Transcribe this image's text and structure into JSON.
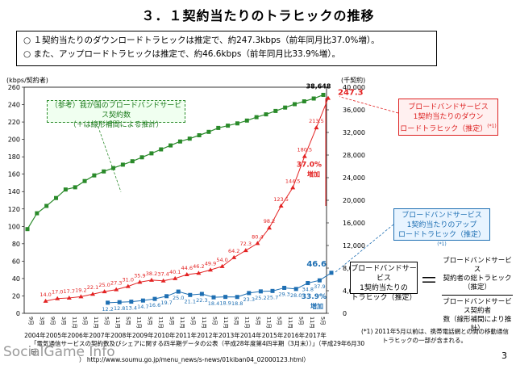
{
  "page": {
    "title": "３．１契約当たりのトラヒックの推移",
    "bullets": [
      "○ １契約当たりのダウンロードトラヒックは推定で、約247.3kbps（前年同月比37.0%増）。",
      "○ また、アップロードトラヒックは推定で、約46.6kbps（前年同月比33.9%増）。"
    ],
    "callout_reference": [
      "（参考）我が国のブロードバンドサービス契約数",
      "（＋は線形補間による推計）"
    ],
    "callout_download": [
      "ブロードバンドサービス",
      "1契約当たりのダウン",
      "ロードトラヒック（推定）"
    ],
    "callout_download_sup": "(*1)",
    "callout_upload": [
      "ブロードバンドサービス",
      "1契約当たりのアップ",
      "ロードトラヒック（推定）"
    ],
    "callout_upload_sup": "(*1)",
    "formula_left": [
      "ブロードバンドサービス",
      "1契約当たりの",
      "トラヒック（推定）"
    ],
    "formula_eq": "＝",
    "formula_num": [
      "ブロードバンドサービス",
      "契約者の総トラヒック（推定）"
    ],
    "formula_den": [
      "ブロードバンドサービス契約者",
      "数（線形補間により推計）"
    ],
    "note": [
      "(*1)  2011年5月以前は、携帯電話網との間の移動通信",
      "トラヒックの一部が含まれる。"
    ],
    "source": [
      "「電気通信サービスの契約数及びシェアに関する四半期データの公表（平成28年度第4四半期（3月末））」（平成29年6月30日",
      "） http://www.soumu.go.jp/menu_news/s-news/01kiban04_02000123.html）"
    ],
    "logo": "SocialGame Info",
    "page_number": "3"
  },
  "chart_data": {
    "type": "line",
    "ylabel_left": "(kbps/契約者)",
    "ylabel_right": "(千契約)",
    "ylim_left": [
      0,
      260
    ],
    "yticks_left": [
      0,
      20,
      40,
      60,
      80,
      100,
      120,
      140,
      160,
      180,
      200,
      220,
      240,
      260
    ],
    "ylim_right": [
      0,
      40000
    ],
    "yticks_right": [
      0,
      4000,
      8000,
      12000,
      16000,
      20000,
      24000,
      28000,
      32000,
      36000,
      40000
    ],
    "yticks_right_labels": [
      "0",
      "4,000",
      "8,000",
      "12,000",
      "16,000",
      "20,000",
      "24,000",
      "28,000",
      "32,000",
      "36,000",
      "40,000"
    ],
    "years": [
      "2004年",
      "2005年",
      "2006年",
      "2007年",
      "2008年",
      "2009年",
      "2010年",
      "2011年",
      "2012年",
      "2013年",
      "2014年",
      "2015年",
      "2016年",
      "2017年"
    ],
    "x_labels": [
      "9月",
      "3月",
      "9月",
      "3月",
      "11月",
      "5月",
      "11月",
      "5月",
      "11月",
      "5月",
      "11月",
      "5月",
      "11月",
      "5月",
      "11月",
      "5月",
      "11月",
      "5月",
      "11月",
      "5月",
      "11月",
      "5月",
      "11月",
      "5月",
      "11月",
      "5月",
      "11月",
      "5月"
    ],
    "series": [
      {
        "name": "ブロードバンドサービス1契約当たりのダウンロードトラヒック（推定）",
        "color": "#e32222",
        "values": [
          14.0,
          17.0,
          17.7,
          19.2,
          22.1,
          25.0,
          27.3,
          31.0,
          35.9,
          38.2,
          37.4,
          40.1,
          44.6,
          46.2,
          49.9,
          54.0,
          64.2,
          72.3,
          80.4,
          98.2,
          123.5,
          144.5,
          180.5,
          213.5,
          247.3
        ],
        "labels": [
          "14.0",
          "17.0",
          "17.7",
          "19.2",
          "22.1",
          "25.0",
          "27.3",
          "31.0",
          "35.9",
          "38.2",
          "37.4",
          "40.1",
          "44.6",
          "46.2",
          "49.9",
          "54.0",
          "64.2",
          "72.3",
          "80.4",
          "98.2",
          "123.5",
          "144.5",
          "180.5",
          "213.5",
          "247.3"
        ],
        "x_index_start": 2
      },
      {
        "name": "ブロードバンドサービス1契約当たりのアップロードトラヒック（推定）",
        "color": "#1e6fb3",
        "values": [
          12.2,
          12.8,
          13.4,
          14.7,
          16.6,
          19.7,
          25.0,
          21.1,
          22.3,
          18.4,
          18.9,
          18.8,
          23.3,
          25.2,
          25.7,
          29.3,
          28.0,
          34.8,
          37.9,
          46.6
        ],
        "labels": [
          "12.2",
          "12.8",
          "13.4",
          "14.7",
          "16.6",
          "19.7",
          "25.0",
          "21.1",
          "22.3",
          "18.4",
          "18.9",
          "18.8",
          "23.3",
          "25.2",
          "25.7",
          "29.3",
          "28.0",
          "34.8",
          "37.9",
          "46.6"
        ],
        "x_index_start": 7
      },
      {
        "name": "（参考）我が国のブロードバンドサービス契約数",
        "color": "#2a8a2a",
        "axis": "right",
        "values": [
          14900,
          17700,
          19000,
          20400,
          21900,
          22300,
          23400,
          24400,
          25100,
          25700,
          26300,
          26900,
          27600,
          28300,
          29000,
          29700,
          30400,
          30900,
          31500,
          32100,
          32800,
          33200,
          33600,
          34100,
          34700,
          35200,
          35800,
          36400,
          37000,
          37500,
          38000,
          38648
        ],
        "end_label": "38,648"
      }
    ],
    "annotations": [
      {
        "text": "37.0%\n増加",
        "color": "#e32222"
      },
      {
        "text": "33.9%\n増加",
        "color": "#1e6fb3"
      },
      {
        "text": "247.3",
        "color": "#e32222"
      },
      {
        "text": "46.6",
        "color": "#1e6fb3"
      }
    ]
  }
}
